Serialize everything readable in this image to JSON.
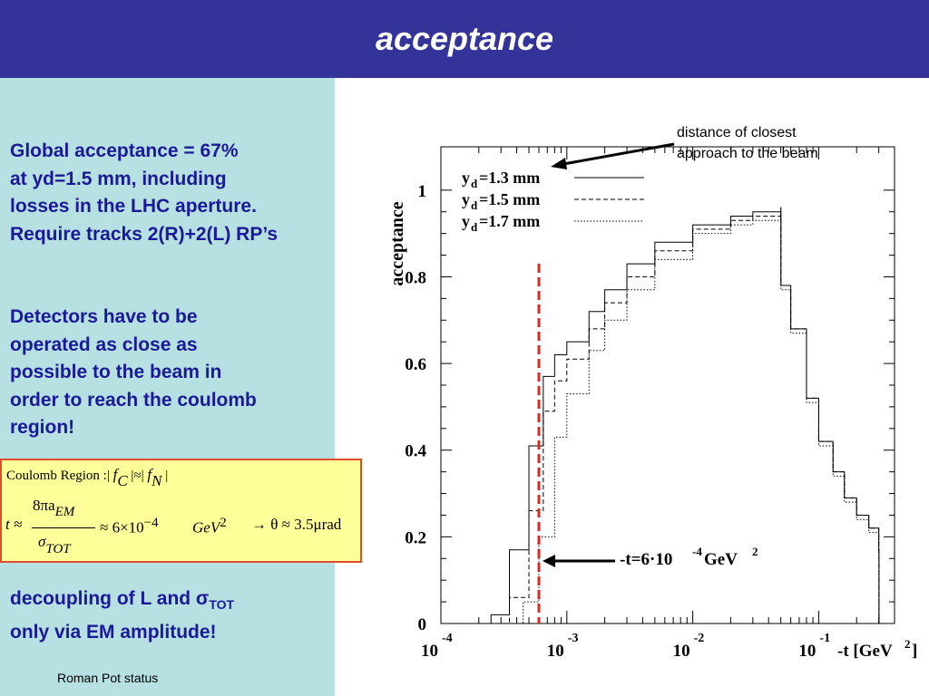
{
  "slide": {
    "title": "acceptance",
    "footer": "Roman Pot status",
    "colors": {
      "title_bar": "#333399",
      "left_panel": "#b7e0e3",
      "text": "#1a1a99",
      "formula_bg": "#ffff99",
      "formula_border": "#e04b2a",
      "marker": "#e0281e"
    }
  },
  "left": {
    "block1": [
      "Global acceptance = 67%",
      "at yd=1.5 mm, including",
      "losses in the LHC aperture.",
      "Require tracks 2(R)+2(L) RP’s"
    ],
    "block2": [
      "Detectors have to be",
      "operated as close as",
      "possible to the beam in",
      "order to reach the coulomb",
      "region!"
    ],
    "block3_line1": "decoupling of L and σ",
    "block3_line1_sub": "TOT",
    "block3_line2": "only via EM amplitude!"
  },
  "formula": {
    "line1_text": "Coulomb Region :|",
    "fc": "f",
    "fc_sub": "C",
    "mid": "|≈|",
    "fn": "f",
    "fn_sub": "N",
    "end": "|",
    "t": "t ≈",
    "numerator": "8πa",
    "numerator_sub": "EM",
    "denominator": "σ",
    "denominator_sub": "TOT",
    "approx": "≈ 6×10",
    "exp": "−4",
    "unit": "GeV",
    "unit_exp": "2",
    "tail": "→ θ ≈ 3.5μrad"
  },
  "annotations": {
    "closest_line1": "distance of closest",
    "closest_line2": "approach to the beam",
    "marker_label": "-t=6·10",
    "marker_label_exp": "-4",
    "marker_label_unit": " GeV",
    "marker_label_unit_exp": "2"
  },
  "chart_data": {
    "type": "line",
    "ylabel": "acceptance",
    "xlabel": "-t [GeV",
    "xlabel_exp": "2",
    "xlabel_close": "]",
    "x_scale": "log",
    "xlim": [
      0.0001,
      0.4
    ],
    "ylim": [
      0,
      1.1
    ],
    "yticks": [
      "0",
      "0.2",
      "0.4",
      "0.6",
      "0.8",
      "1"
    ],
    "xticks": [
      {
        "base": "10",
        "exp": "-4"
      },
      {
        "base": "10",
        "exp": "-3"
      },
      {
        "base": "10",
        "exp": "-2"
      },
      {
        "base": "10",
        "exp": "-1"
      }
    ],
    "vline_x": 0.0006,
    "legend_position": "top-left",
    "series": [
      {
        "name": "=1.3 mm",
        "label_main": "y",
        "label_sub": "d",
        "style": "solid",
        "x": [
          0.00018,
          0.00025,
          0.00035,
          0.0005,
          0.00065,
          0.0008,
          0.001,
          0.0015,
          0.002,
          0.003,
          0.005,
          0.01,
          0.02,
          0.03,
          0.05,
          0.0501,
          0.06,
          0.08,
          0.1,
          0.13,
          0.16,
          0.2,
          0.25,
          0.3,
          0.301
        ],
        "y": [
          0.0,
          0.02,
          0.17,
          0.41,
          0.57,
          0.62,
          0.65,
          0.72,
          0.77,
          0.83,
          0.88,
          0.92,
          0.94,
          0.95,
          0.96,
          0.78,
          0.68,
          0.52,
          0.42,
          0.35,
          0.29,
          0.25,
          0.22,
          0.17,
          0.0
        ]
      },
      {
        "name": "=1.5 mm",
        "label_main": "y",
        "label_sub": "d",
        "style": "dashed",
        "x": [
          0.00024,
          0.00035,
          0.0005,
          0.00065,
          0.0008,
          0.001,
          0.0015,
          0.002,
          0.003,
          0.005,
          0.01,
          0.02,
          0.03,
          0.05,
          0.0501,
          0.06,
          0.08,
          0.1,
          0.13,
          0.16,
          0.2,
          0.25,
          0.3,
          0.301
        ],
        "y": [
          0.0,
          0.06,
          0.26,
          0.49,
          0.56,
          0.61,
          0.68,
          0.74,
          0.8,
          0.86,
          0.91,
          0.93,
          0.94,
          0.95,
          0.78,
          0.68,
          0.52,
          0.42,
          0.35,
          0.29,
          0.25,
          0.22,
          0.17,
          0.0
        ]
      },
      {
        "name": "=1.7 mm",
        "label_main": "y",
        "label_sub": "d",
        "style": "dotted",
        "x": [
          0.00032,
          0.00045,
          0.0006,
          0.0008,
          0.001,
          0.0015,
          0.002,
          0.003,
          0.005,
          0.01,
          0.02,
          0.03,
          0.05,
          0.0501,
          0.06,
          0.08,
          0.1,
          0.13,
          0.16,
          0.2,
          0.25,
          0.3,
          0.301
        ],
        "y": [
          0.0,
          0.05,
          0.2,
          0.43,
          0.53,
          0.63,
          0.7,
          0.77,
          0.84,
          0.9,
          0.92,
          0.93,
          0.94,
          0.77,
          0.67,
          0.51,
          0.41,
          0.34,
          0.28,
          0.24,
          0.21,
          0.16,
          0.0
        ]
      }
    ]
  }
}
